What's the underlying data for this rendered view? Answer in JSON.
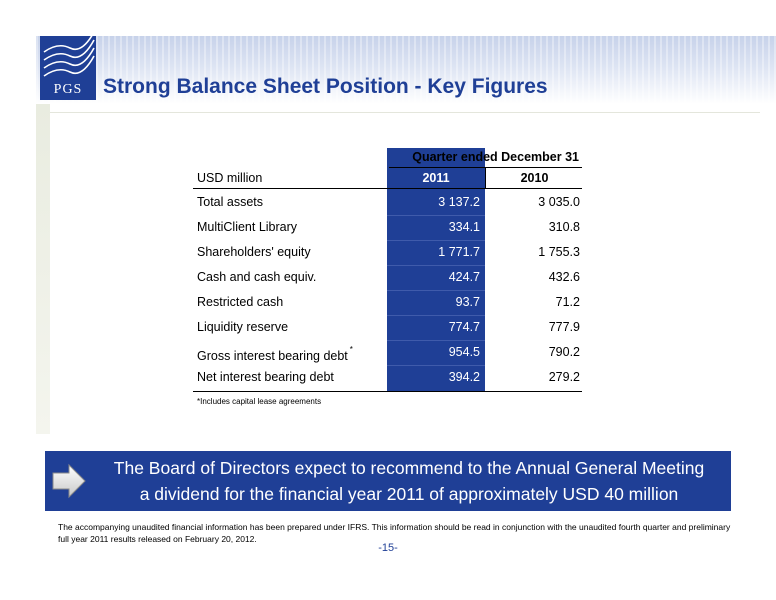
{
  "header": {
    "logo_text": "PGS",
    "title": "Strong Balance Sheet Position - Key Figures"
  },
  "table": {
    "period_header": "Quarter ended December 31",
    "unit_label": "USD million",
    "col_2011": "2011",
    "col_2010": "2010",
    "rows": [
      {
        "label": "Total assets",
        "v2011": "3 137.2",
        "v2010": "3 035.0"
      },
      {
        "label": "MultiClient Library",
        "v2011": "334.1",
        "v2010": "310.8"
      },
      {
        "label": "Shareholders' equity",
        "v2011": "1 771.7",
        "v2010": "1 755.3"
      },
      {
        "label": "Cash and cash equiv.",
        "v2011": "424.7",
        "v2010": "432.6"
      },
      {
        "label": "Restricted cash",
        "v2011": "93.7",
        "v2010": "71.2"
      },
      {
        "label": "Liquidity reserve",
        "v2011": "774.7",
        "v2010": "777.9"
      },
      {
        "label": "Gross interest bearing debt",
        "marker": "*",
        "v2011": "954.5",
        "v2010": "790.2"
      },
      {
        "label": "Net interest bearing debt",
        "v2011": "394.2",
        "v2010": "279.2"
      }
    ],
    "footnote": "*Includes capital lease agreements"
  },
  "callout": {
    "line1": "The Board of Directors expect to recommend to the Annual General Meeting",
    "line2": "a dividend for the financial year 2011 of approximately USD 40 million"
  },
  "disclaimer": "The accompanying unaudited financial information has been prepared under IFRS. This information should be read in conjunction with the unaudited fourth quarter and preliminary full year 2011 results released on February 20, 2012.",
  "page_number": "-15-",
  "colors": {
    "brand_blue": "#1f3f96"
  },
  "icons": {
    "callout": "arrow-right-icon"
  }
}
